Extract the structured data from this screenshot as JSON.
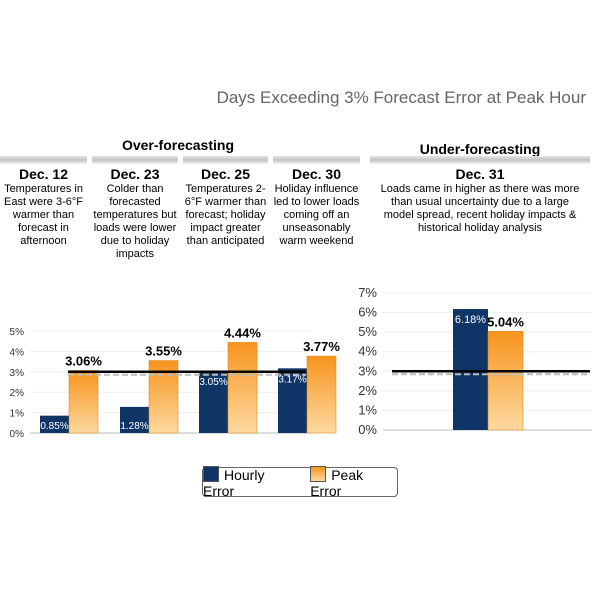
{
  "title": "Days Exceeding 3% Forecast Error at Peak Hour",
  "sections": {
    "over": "Over-forecasting",
    "under": "Under-forecasting"
  },
  "columns": [
    {
      "date": "Dec. 12",
      "desc": "Temperatures in East were 3-6°F warmer than forecast in afternoon"
    },
    {
      "date": "Dec. 23",
      "desc": "Colder than forecasted temperatures but loads were lower due to holiday impacts"
    },
    {
      "date": "Dec. 25",
      "desc": "Temperatures 2-6°F warmer than forecast; holiday impact greater than anticipated"
    },
    {
      "date": "Dec. 30",
      "desc": "Holiday influence led to lower loads coming off an unseasonably warm weekend"
    },
    {
      "date": "Dec. 31",
      "desc": "Loads came in higher as there was more than usual uncertainty due to a large model spread, recent holiday impacts & historical holiday analysis"
    }
  ],
  "colors": {
    "hourly": "#0f3466",
    "peak": "#f7941d",
    "peak_light": "#fdd9a0"
  },
  "chart_data": [
    {
      "type": "bar",
      "categories": [
        "Dec. 12",
        "Dec. 23",
        "Dec. 25",
        "Dec. 30"
      ],
      "series": [
        {
          "name": "Hourly Error",
          "values": [
            0.85,
            1.28,
            3.05,
            3.17
          ],
          "labels": [
            "0.85%",
            "1.28%",
            "3.05%",
            "3.17%"
          ]
        },
        {
          "name": "Peak Error",
          "values": [
            3.06,
            3.55,
            4.44,
            3.77
          ],
          "labels": [
            "3.06%",
            "3.55%",
            "4.44%",
            "3.77%"
          ]
        }
      ],
      "threshold": 3,
      "ylim": [
        0,
        5
      ],
      "yticks": [
        "0%",
        "1%",
        "2%",
        "3%",
        "4%",
        "5%"
      ]
    },
    {
      "type": "bar",
      "categories": [
        "Dec. 31"
      ],
      "series": [
        {
          "name": "Hourly Error",
          "values": [
            6.18
          ],
          "labels": [
            "6.18%"
          ]
        },
        {
          "name": "Peak Error",
          "values": [
            5.04
          ],
          "labels": [
            "5.04%"
          ]
        }
      ],
      "threshold": 3,
      "ylim": [
        0,
        7
      ],
      "yticks": [
        "0%",
        "1%",
        "2%",
        "3%",
        "4%",
        "5%",
        "6%",
        "7%"
      ]
    }
  ],
  "legend": [
    "Hourly Error",
    "Peak Error"
  ]
}
